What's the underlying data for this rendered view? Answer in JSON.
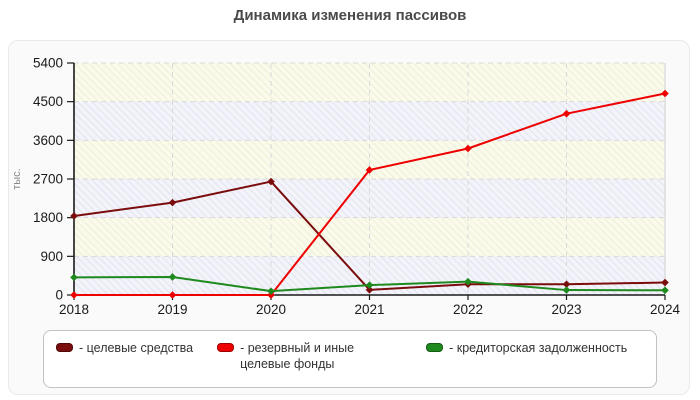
{
  "title": "Динамика изменения пассивов",
  "y_axis_unit": "тыс.",
  "colors": {
    "band_cream_bg": "#fbfbec",
    "band_cream_line": "#efefd8",
    "band_blue_bg": "#f3f3fa",
    "band_blue_line": "#e3e3f1",
    "grid": "#d9d9d9",
    "plot_right_edge": "#dcdcdc",
    "axis": "#1a1a1a",
    "tick_text": "#1a1a1a",
    "title_text": "#4a4a4a",
    "unit_text": "#8a8a8a"
  },
  "chart_data": {
    "type": "line",
    "title": "Динамика изменения пассивов",
    "x": [
      2018,
      2019,
      2020,
      2021,
      2022,
      2023,
      2024
    ],
    "series": [
      {
        "name": "целевые средства",
        "color": "#7a0c0c",
        "values": [
          1840,
          2150,
          2640,
          120,
          250,
          250,
          290
        ]
      },
      {
        "name": "резервный и иные целевые фонды",
        "color": "#ee0000",
        "values": [
          0,
          0,
          0,
          2910,
          3410,
          4220,
          4690
        ]
      },
      {
        "name": "кредиторская задолженность",
        "color": "#1e8a1e",
        "values": [
          410,
          420,
          90,
          230,
          310,
          115,
          110
        ]
      }
    ],
    "xlabel": "",
    "ylabel": "тыс.",
    "ylim": [
      0,
      5400
    ],
    "yticks": [
      0,
      900,
      1800,
      2700,
      3600,
      4500,
      5400
    ],
    "grid": true,
    "legend_position": "bottom"
  },
  "legend": {
    "items": [
      {
        "label": "- целевые средства",
        "color": "#7a0c0c"
      },
      {
        "label": "- резервный и иные целевые фонды",
        "color": "#ee0000"
      },
      {
        "label": "- кредиторская задолженность",
        "color": "#1e8a1e"
      }
    ]
  }
}
